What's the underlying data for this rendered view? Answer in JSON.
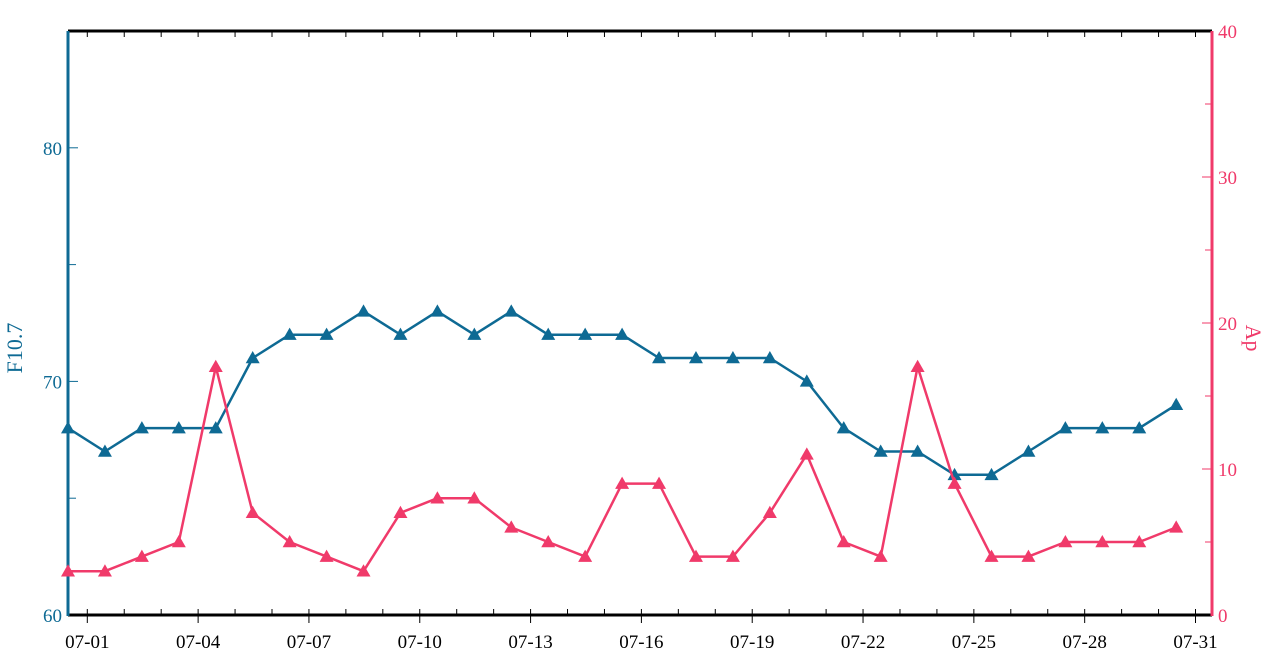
{
  "chart_data": {
    "type": "line",
    "x": [
      "07-01",
      "07-02",
      "07-03",
      "07-04",
      "07-05",
      "07-06",
      "07-07",
      "07-08",
      "07-09",
      "07-10",
      "07-11",
      "07-12",
      "07-13",
      "07-14",
      "07-15",
      "07-16",
      "07-17",
      "07-18",
      "07-19",
      "07-20",
      "07-21",
      "07-22",
      "07-23",
      "07-24",
      "07-25",
      "07-26",
      "07-27",
      "07-28",
      "07-29",
      "07-30",
      "07-31"
    ],
    "x_tick_labels": [
      "07-01",
      "07-04",
      "07-07",
      "07-10",
      "07-13",
      "07-16",
      "07-19",
      "07-22",
      "07-25",
      "07-28",
      "07-31"
    ],
    "series": [
      {
        "name": "F10.7",
        "axis": "left",
        "color": "#0e6a94",
        "marker": "triangle",
        "values": [
          68,
          67,
          68,
          68,
          68,
          71,
          72,
          72,
          73,
          72,
          73,
          72,
          73,
          72,
          72,
          72,
          71,
          71,
          71,
          71,
          70,
          68,
          67,
          67,
          66,
          66,
          67,
          68,
          68,
          68,
          69
        ]
      },
      {
        "name": "Ap",
        "axis": "right",
        "color": "#f03a6a",
        "marker": "triangle",
        "values": [
          3,
          3,
          4,
          5,
          17,
          7,
          5,
          4,
          3,
          7,
          8,
          8,
          6,
          5,
          4,
          9,
          9,
          4,
          4,
          7,
          11,
          5,
          4,
          17,
          9,
          4,
          4,
          5,
          5,
          5,
          6
        ]
      }
    ],
    "y_left": {
      "label": "F10.7",
      "ylim": [
        60,
        85
      ],
      "ticks": [
        "60",
        "70",
        "80"
      ],
      "color": "#0e6a94"
    },
    "y_right": {
      "label": "Ap",
      "ylim": [
        0,
        40
      ],
      "ticks": [
        "0",
        "10",
        "20",
        "30",
        "40"
      ],
      "color": "#f03a6a"
    },
    "grid": false
  }
}
